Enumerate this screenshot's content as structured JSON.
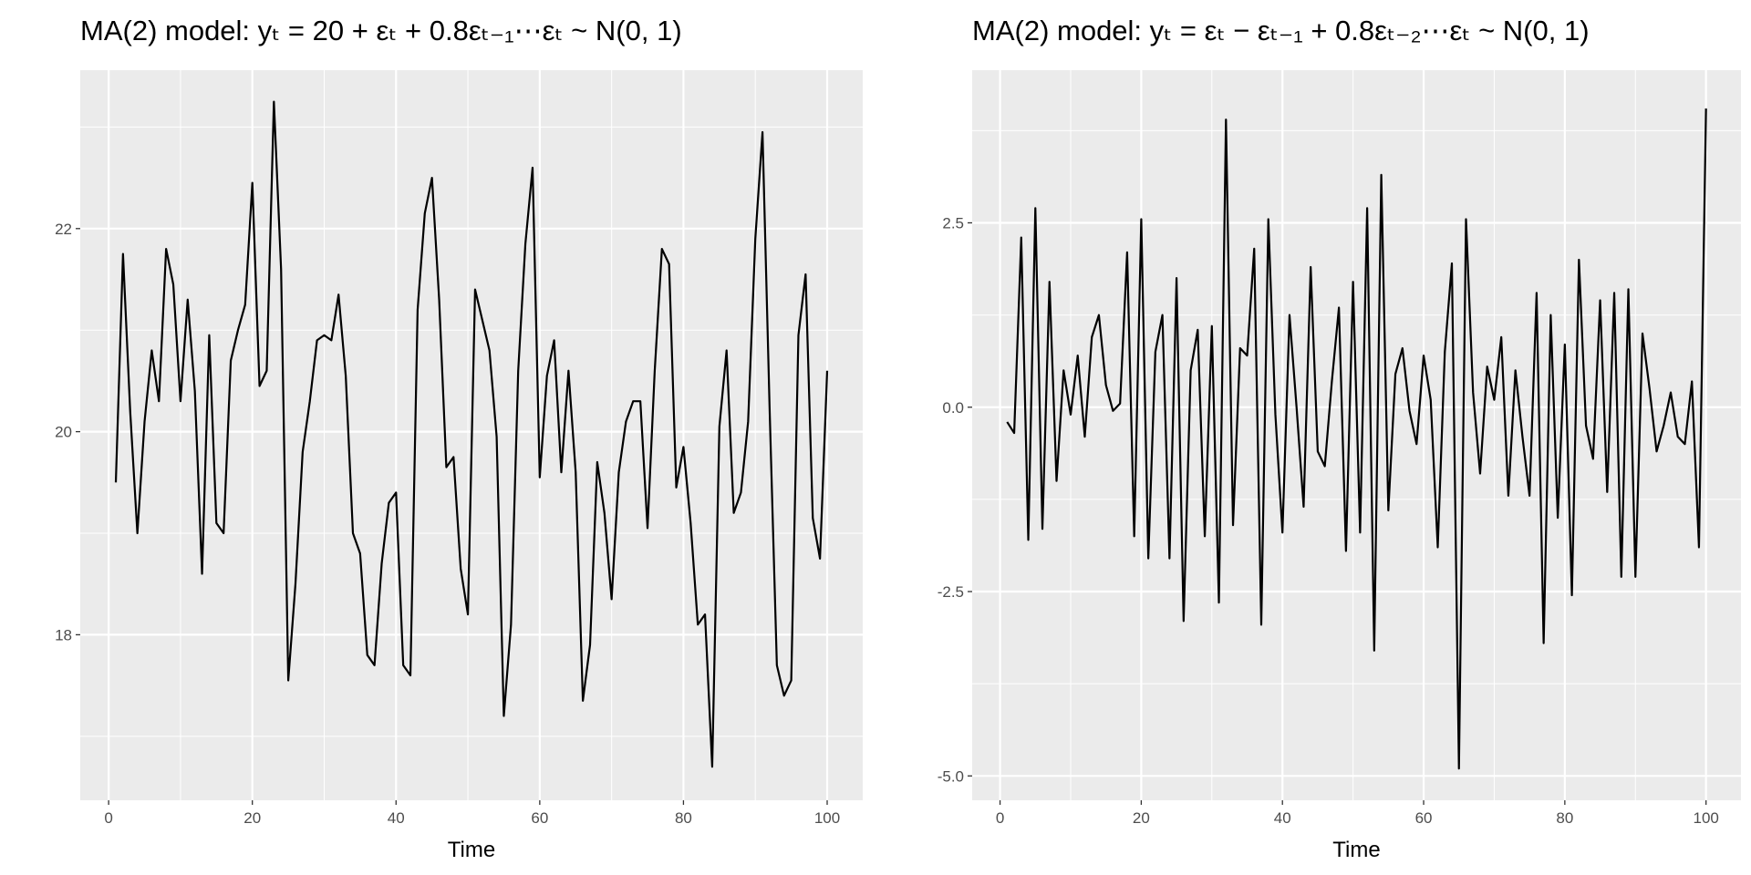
{
  "chart_data": [
    {
      "type": "line",
      "title": "MA(2) model: yₜ = 20 + εₜ + 0.8εₜ₋₁⋯εₜ ~ N(0, 1)",
      "xlabel": "Time",
      "x": [
        1,
        2,
        3,
        4,
        5,
        6,
        7,
        8,
        9,
        10,
        11,
        12,
        13,
        14,
        15,
        16,
        17,
        18,
        19,
        20,
        21,
        22,
        23,
        24,
        25,
        26,
        27,
        28,
        29,
        30,
        31,
        32,
        33,
        34,
        35,
        36,
        37,
        38,
        39,
        40,
        41,
        42,
        43,
        44,
        45,
        46,
        47,
        48,
        49,
        50,
        51,
        52,
        53,
        54,
        55,
        56,
        57,
        58,
        59,
        60,
        61,
        62,
        63,
        64,
        65,
        66,
        67,
        68,
        69,
        70,
        71,
        72,
        73,
        74,
        75,
        76,
        77,
        78,
        79,
        80,
        81,
        82,
        83,
        84,
        85,
        86,
        87,
        88,
        89,
        90,
        91,
        92,
        93,
        94,
        95,
        96,
        97,
        98,
        99,
        100
      ],
      "values": [
        19.5,
        21.75,
        20.2,
        19.0,
        20.1,
        20.8,
        20.3,
        21.8,
        21.45,
        20.3,
        21.3,
        20.4,
        18.6,
        20.95,
        19.1,
        19.0,
        20.7,
        21.0,
        21.25,
        22.45,
        20.45,
        20.6,
        23.25,
        21.6,
        17.55,
        18.5,
        19.8,
        20.3,
        20.9,
        20.95,
        20.9,
        21.35,
        20.55,
        19.0,
        18.8,
        17.8,
        17.7,
        18.7,
        19.3,
        19.4,
        17.7,
        17.6,
        21.2,
        22.15,
        22.5,
        21.3,
        19.65,
        19.75,
        18.65,
        18.2,
        21.4,
        21.1,
        20.8,
        19.95,
        17.2,
        18.1,
        20.6,
        21.85,
        22.6,
        19.55,
        20.55,
        20.9,
        19.6,
        20.6,
        19.6,
        17.35,
        17.9,
        19.7,
        19.2,
        18.35,
        19.6,
        20.1,
        20.3,
        20.3,
        19.05,
        20.6,
        21.8,
        21.65,
        19.45,
        19.85,
        19.1,
        18.1,
        18.2,
        16.7,
        20.05,
        20.8,
        19.2,
        19.4,
        20.1,
        21.9,
        22.95,
        20.2,
        17.7,
        17.4,
        17.55,
        20.95,
        21.55,
        19.15,
        18.75,
        20.6
      ],
      "color": "#000000",
      "xlim": [
        -3.95,
        104.95
      ],
      "xticks": [
        0,
        20,
        40,
        60,
        80,
        100
      ],
      "minor_xticks": [
        10,
        30,
        50,
        70,
        90
      ],
      "ylim": [
        16.37,
        23.56
      ],
      "yticks": [
        18,
        20,
        22
      ],
      "minor_yticks": [
        17,
        19,
        21,
        23
      ],
      "grid": true
    },
    {
      "type": "line",
      "title": "MA(2) model:  yₜ = εₜ − εₜ₋₁ + 0.8εₜ₋₂⋯εₜ ~ N(0, 1)",
      "xlabel": "Time",
      "x": [
        1,
        2,
        3,
        4,
        5,
        6,
        7,
        8,
        9,
        10,
        11,
        12,
        13,
        14,
        15,
        16,
        17,
        18,
        19,
        20,
        21,
        22,
        23,
        24,
        25,
        26,
        27,
        28,
        29,
        30,
        31,
        32,
        33,
        34,
        35,
        36,
        37,
        38,
        39,
        40,
        41,
        42,
        43,
        44,
        45,
        46,
        47,
        48,
        49,
        50,
        51,
        52,
        53,
        54,
        55,
        56,
        57,
        58,
        59,
        60,
        61,
        62,
        63,
        64,
        65,
        66,
        67,
        68,
        69,
        70,
        71,
        72,
        73,
        74,
        75,
        76,
        77,
        78,
        79,
        80,
        81,
        82,
        83,
        84,
        85,
        86,
        87,
        88,
        89,
        90,
        91,
        92,
        93,
        94,
        95,
        96,
        97,
        98,
        99,
        100
      ],
      "values": [
        -0.2,
        -0.35,
        2.3,
        -1.8,
        2.7,
        -1.65,
        1.7,
        -1.0,
        0.5,
        -0.1,
        0.7,
        -0.4,
        0.95,
        1.25,
        0.3,
        -0.05,
        0.05,
        2.1,
        -1.75,
        2.55,
        -2.05,
        0.75,
        1.25,
        -2.05,
        1.75,
        -2.9,
        0.5,
        1.05,
        -1.75,
        1.1,
        -2.65,
        3.9,
        -1.6,
        0.8,
        0.7,
        2.15,
        -2.95,
        2.55,
        -0.1,
        -1.7,
        1.25,
        0.0,
        -1.35,
        1.9,
        -0.6,
        -0.8,
        0.35,
        1.35,
        -1.95,
        1.7,
        -1.7,
        2.7,
        -3.3,
        3.15,
        -1.4,
        0.45,
        0.8,
        -0.05,
        -0.5,
        0.7,
        0.1,
        -1.9,
        0.75,
        1.95,
        -4.9,
        2.55,
        0.2,
        -0.9,
        0.55,
        0.1,
        0.95,
        -1.2,
        0.5,
        -0.4,
        -1.2,
        1.55,
        -3.2,
        1.25,
        -1.5,
        0.85,
        -2.55,
        2.0,
        -0.25,
        -0.7,
        1.45,
        -1.15,
        1.55,
        -2.3,
        1.6,
        -2.3,
        1.0,
        0.25,
        -0.6,
        -0.25,
        0.2,
        -0.4,
        -0.5,
        0.35,
        -1.9,
        4.05
      ],
      "color": "#000000",
      "xlim": [
        -3.95,
        104.95
      ],
      "xticks": [
        0,
        20,
        40,
        60,
        80,
        100
      ],
      "minor_xticks": [
        10,
        30,
        50,
        70,
        90
      ],
      "ylim": [
        -5.33,
        4.57
      ],
      "yticks": [
        -2.5,
        {
          "value": -5,
          "label": "-5.0"
        },
        {
          "value": 0,
          "label": "0.0"
        },
        2.5
      ],
      "minor_yticks": [
        -3.75,
        -1.25,
        1.25,
        3.75
      ],
      "grid": true
    }
  ]
}
